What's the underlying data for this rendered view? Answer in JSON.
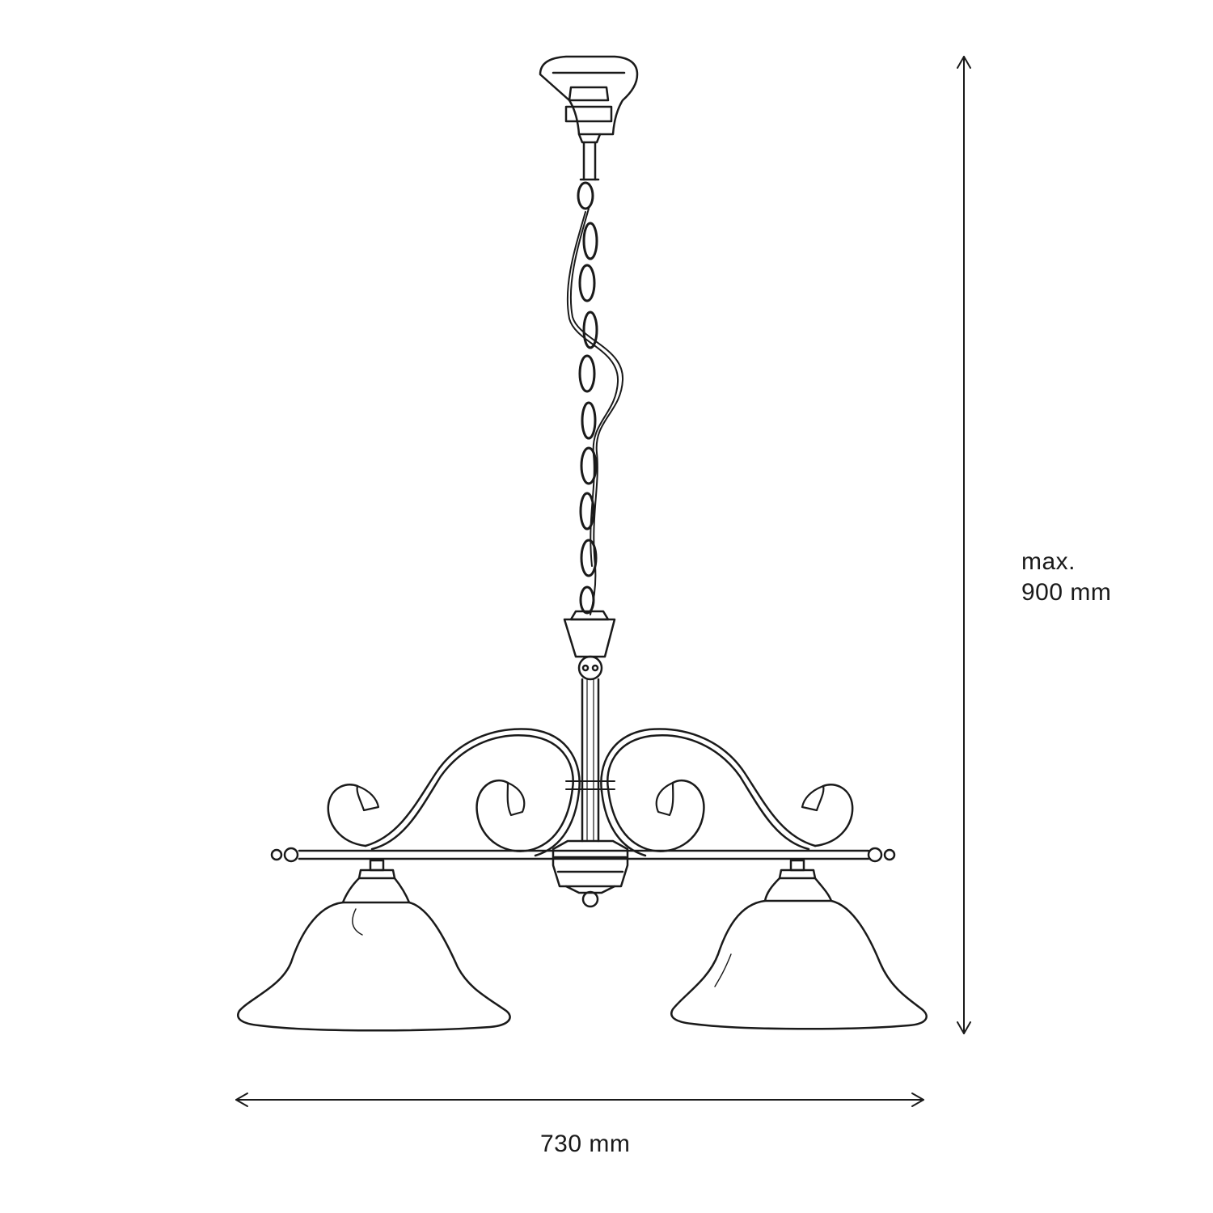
{
  "dimensions": {
    "height": {
      "prefix": "max.",
      "value": "900 mm"
    },
    "width": {
      "value": "730 mm"
    }
  },
  "colors": {
    "line": "#1a1a1a",
    "background": "#ffffff"
  }
}
